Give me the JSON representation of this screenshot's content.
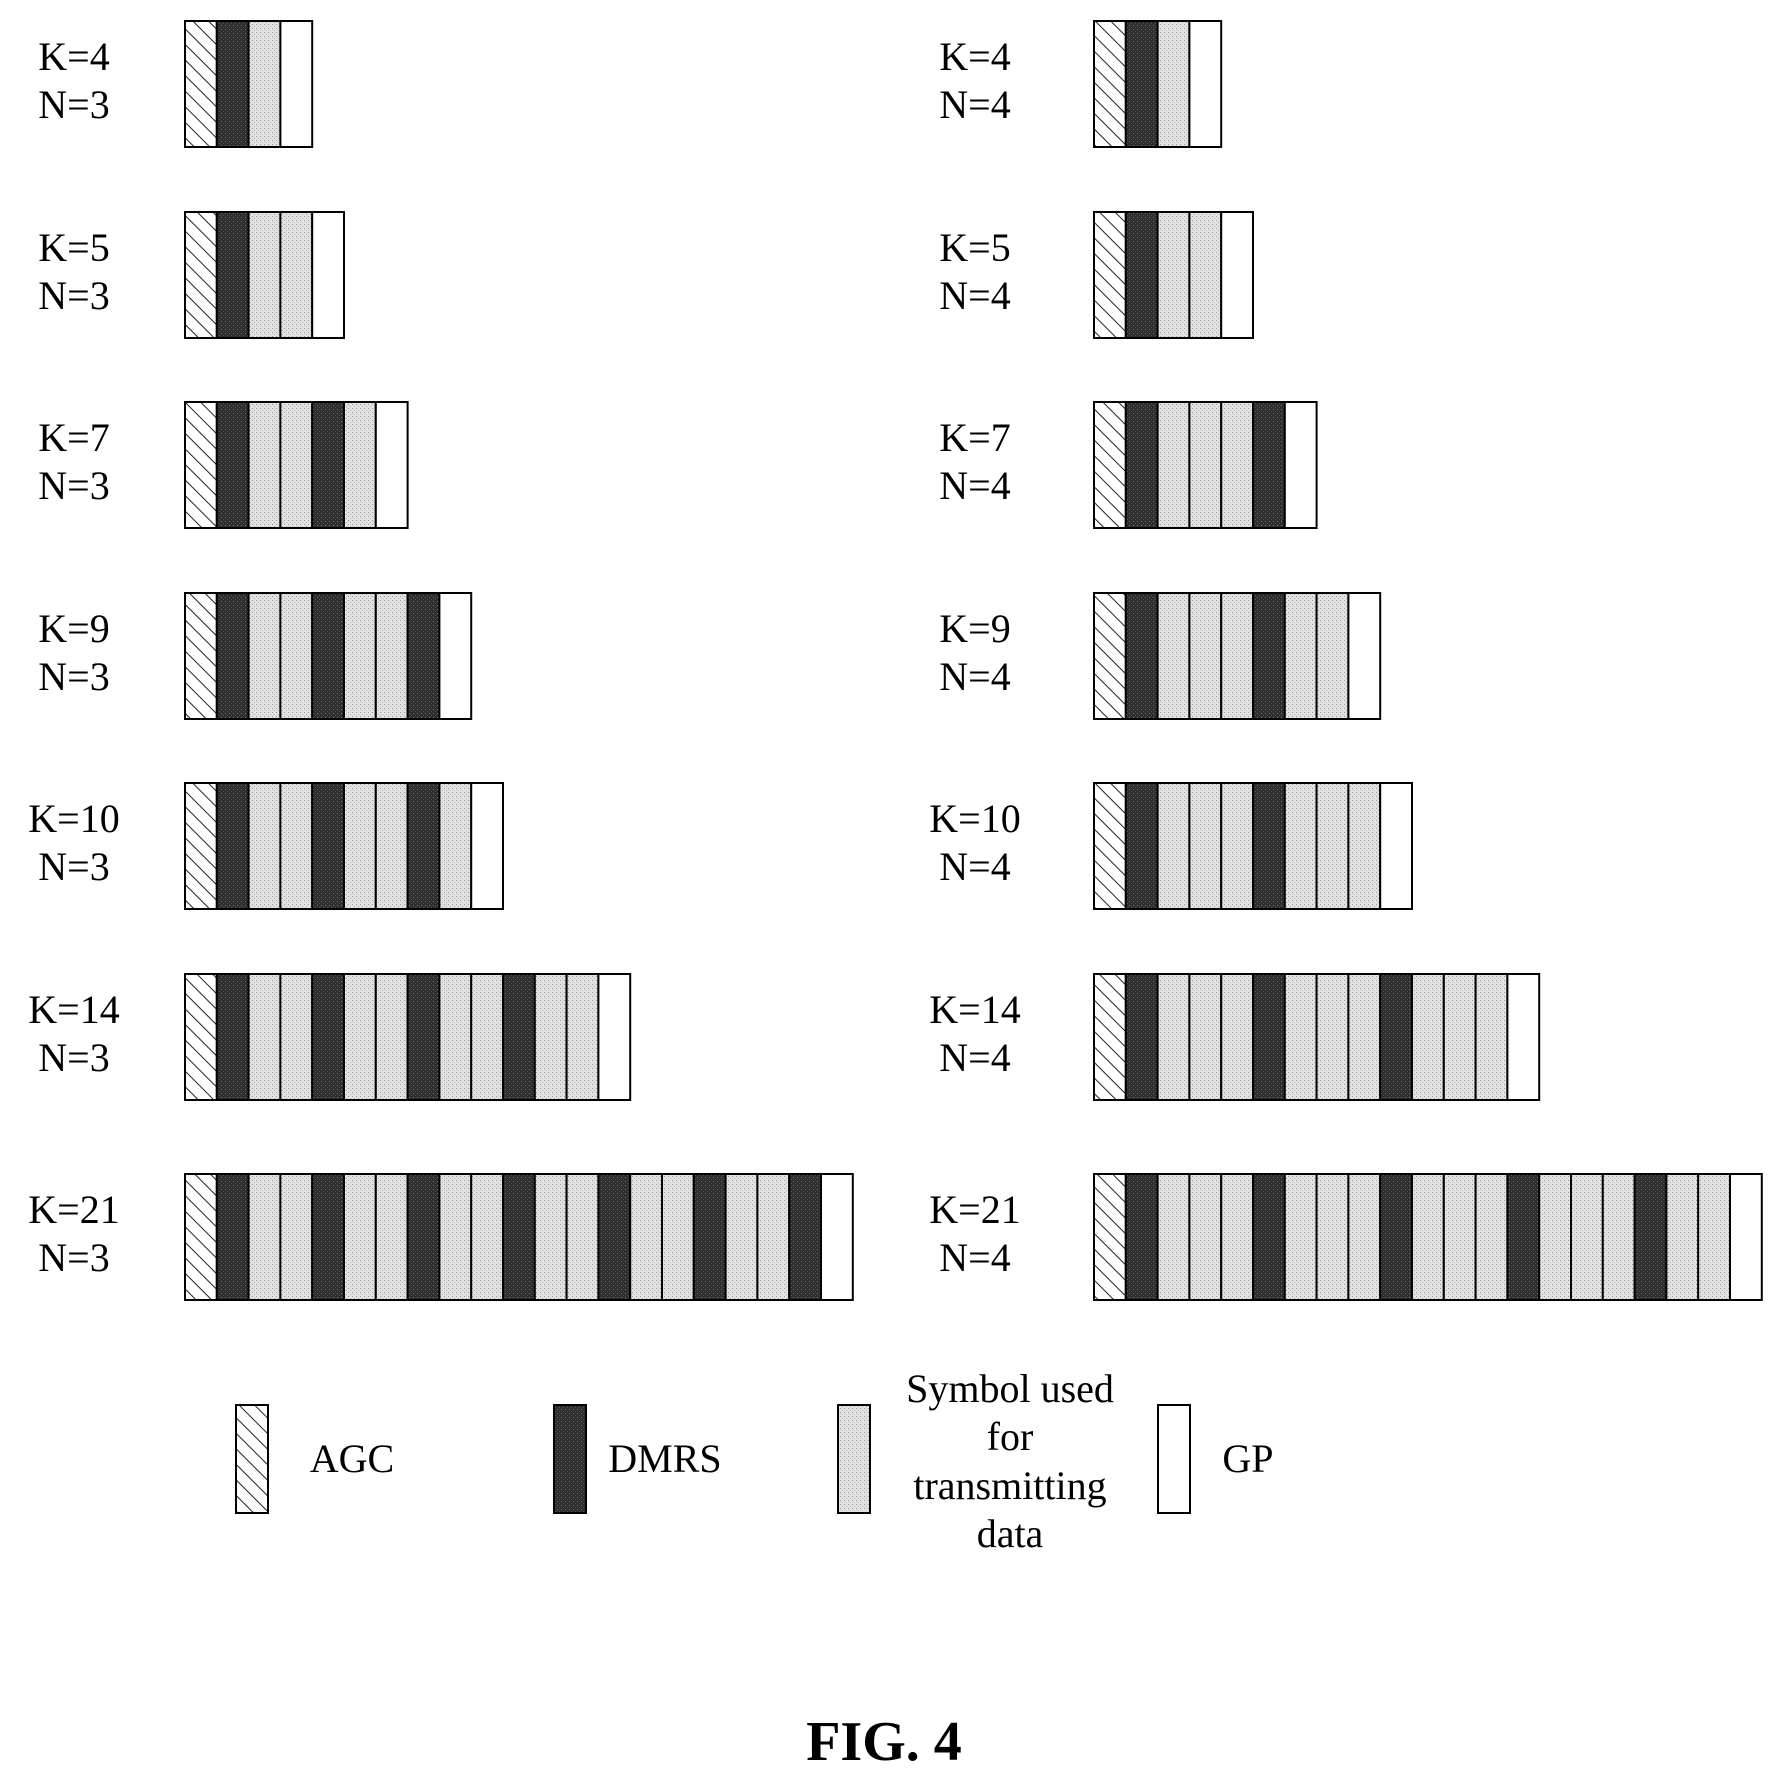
{
  "legend": {
    "agc": "AGC",
    "dmrs": "DMRS",
    "data_lines": [
      "Symbol used",
      "for",
      "transmitting",
      "data"
    ],
    "gp": "GP"
  },
  "figure_label": "FIG. 4",
  "columns": [
    {
      "rows": [
        {
          "k_label": "K=4",
          "n_label": "N=3",
          "symbols": "ADdG"
        },
        {
          "k_label": "K=5",
          "n_label": "N=3",
          "symbols": "ADddG"
        },
        {
          "k_label": "K=7",
          "n_label": "N=3",
          "symbols": "ADddDdG"
        },
        {
          "k_label": "K=9",
          "n_label": "N=3",
          "symbols": "ADddDddDG"
        },
        {
          "k_label": "K=10",
          "n_label": "N=3",
          "symbols": "ADddDddDdG"
        },
        {
          "k_label": "K=14",
          "n_label": "N=3",
          "symbols": "ADddDddDddDddG"
        },
        {
          "k_label": "K=21",
          "n_label": "N=3",
          "symbols": "ADddDddDddDddDddDddDG"
        }
      ]
    },
    {
      "rows": [
        {
          "k_label": "K=4",
          "n_label": "N=4",
          "symbols": "ADdG"
        },
        {
          "k_label": "K=5",
          "n_label": "N=4",
          "symbols": "ADddG"
        },
        {
          "k_label": "K=7",
          "n_label": "N=4",
          "symbols": "ADdddDG"
        },
        {
          "k_label": "K=9",
          "n_label": "N=4",
          "symbols": "ADdddDddG"
        },
        {
          "k_label": "K=10",
          "n_label": "N=4",
          "symbols": "ADdddDdddG"
        },
        {
          "k_label": "K=14",
          "n_label": "N=4",
          "symbols": "ADdddDdddDdddG"
        },
        {
          "k_label": "K=21",
          "n_label": "N=4",
          "symbols": "ADdddDdddDdddDdddDddG"
        }
      ]
    }
  ]
}
